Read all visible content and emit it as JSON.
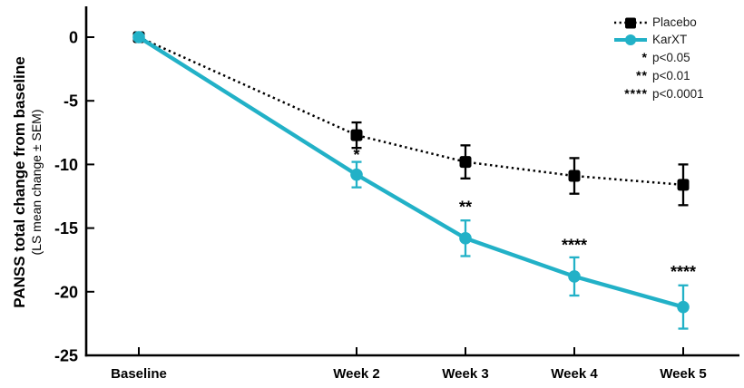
{
  "colors": {
    "placebo": "#000000",
    "karxt": "#22b1c7",
    "axis": "#000000",
    "background": "#ffffff"
  },
  "y_axis": {
    "title": "PANSS total change from baseline",
    "subtitle": "(LS mean change ± SEM)"
  },
  "legend": {
    "series": [
      {
        "label": "Placebo"
      },
      {
        "label": "KarXT"
      }
    ],
    "sig": [
      {
        "symbol": "*",
        "label": "p<0.05"
      },
      {
        "symbol": "**",
        "label": "p<0.01"
      },
      {
        "symbol": "****",
        "label": "p<0.0001"
      }
    ]
  },
  "chart_data": {
    "type": "line",
    "title": "",
    "xlabel": "",
    "ylabel": "PANSS total change from baseline",
    "ylabel_sub": "(LS mean change ± SEM)",
    "categories": [
      "Baseline",
      "Week 2",
      "Week 3",
      "Week 4",
      "Week 5"
    ],
    "x_weeks": [
      0,
      2,
      3,
      4,
      5
    ],
    "xlim": [
      -0.5,
      5.5
    ],
    "ylim": [
      -25,
      0
    ],
    "yticks": [
      0,
      -5,
      -10,
      -15,
      -20,
      -25
    ],
    "grid": false,
    "legend_position": "top-right",
    "series": [
      {
        "name": "Placebo",
        "color": "#000000",
        "line_style": "dotted",
        "marker": "square",
        "values": [
          0,
          -7.7,
          -9.8,
          -10.9,
          -11.6
        ],
        "sem": [
          0,
          1.0,
          1.3,
          1.4,
          1.6
        ]
      },
      {
        "name": "KarXT",
        "color": "#22b1c7",
        "line_style": "solid",
        "marker": "circle",
        "values": [
          0,
          -10.8,
          -15.8,
          -18.8,
          -21.2
        ],
        "sem": [
          0,
          1.0,
          1.4,
          1.5,
          1.7
        ]
      }
    ],
    "significance": [
      {
        "x_week": 2,
        "symbol": "*",
        "y": -9.0
      },
      {
        "x_week": 3,
        "symbol": "**",
        "y": -13.1
      },
      {
        "x_week": 4,
        "symbol": "****",
        "y": -16.1
      },
      {
        "x_week": 5,
        "symbol": "****",
        "y": -18.2
      }
    ]
  }
}
